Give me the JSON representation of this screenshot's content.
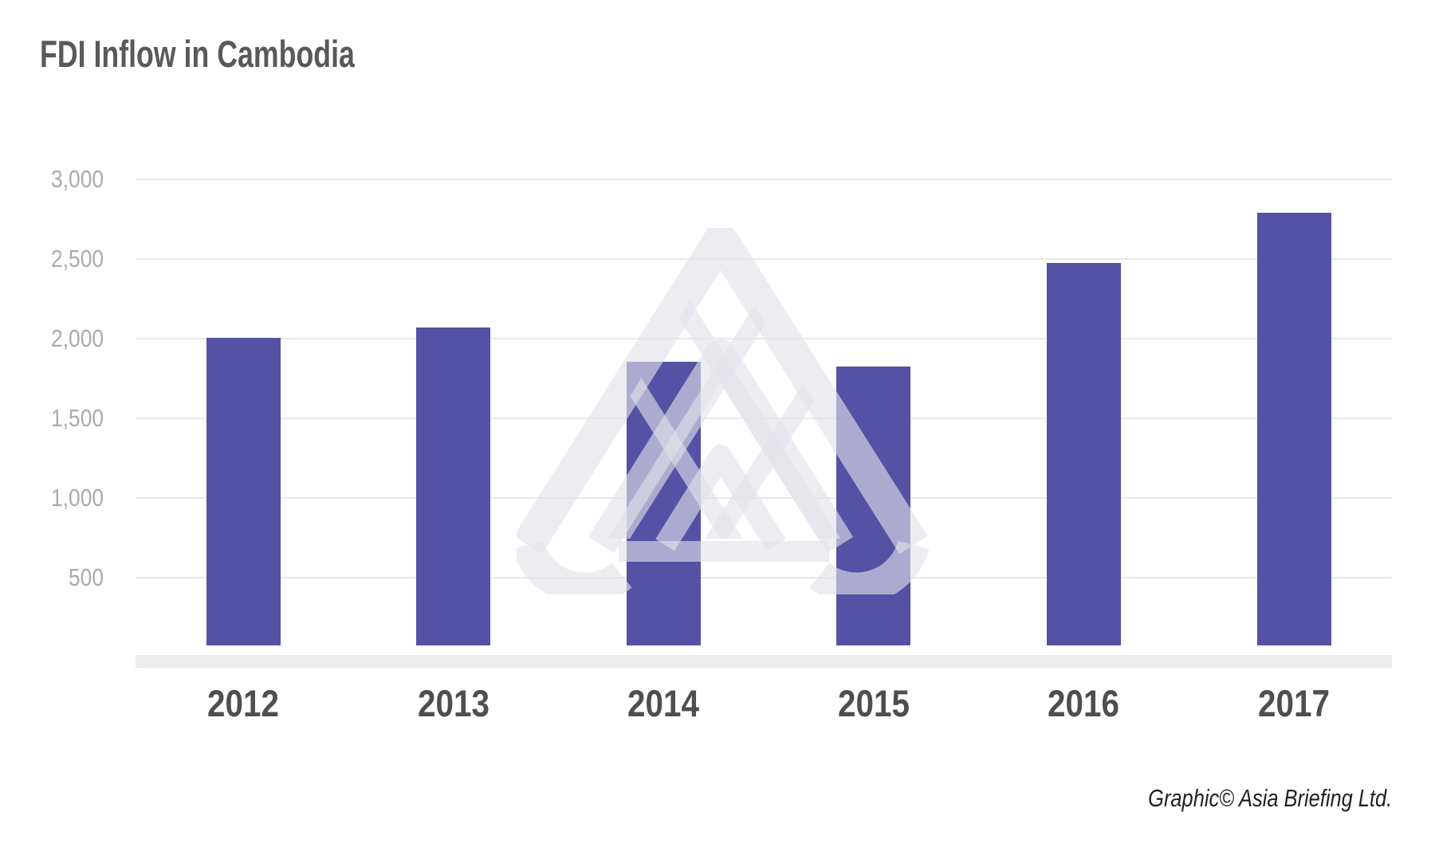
{
  "chart": {
    "title": "FDI Inflow in Cambodia",
    "attribution": "Graphic© Asia Briefing Ltd."
  },
  "chart_data": {
    "type": "bar",
    "title": "FDI Inflow in Cambodia",
    "categories": [
      "2012",
      "2013",
      "2014",
      "2015",
      "2016",
      "2017"
    ],
    "values": [
      2004,
      2068,
      1853,
      1823,
      2476,
      2788
    ],
    "xlabel": "",
    "ylabel": "",
    "ylim": [
      0,
      3000
    ],
    "yticks": [
      500,
      1000,
      1500,
      2000,
      2500,
      3000
    ],
    "ytick_labels": [
      "500",
      "1,000",
      "1,500",
      "2,000",
      "2,500",
      "3,000"
    ],
    "grid": true,
    "legend": false,
    "annotations": [
      "Graphic© Asia Briefing Ltd."
    ],
    "watermark_icon": "asia-briefing-logo"
  },
  "colors": {
    "bar": "#5551a5",
    "gridline": "#e9e9ea",
    "baseline_band": "#ededef",
    "title_text": "#58595b",
    "x_label_text": "#4d4e50",
    "y_label_text": "#a9abae",
    "attribution_text": "#242122",
    "watermark": "rgba(226,226,233,0.62)",
    "background": "#ffffff"
  }
}
